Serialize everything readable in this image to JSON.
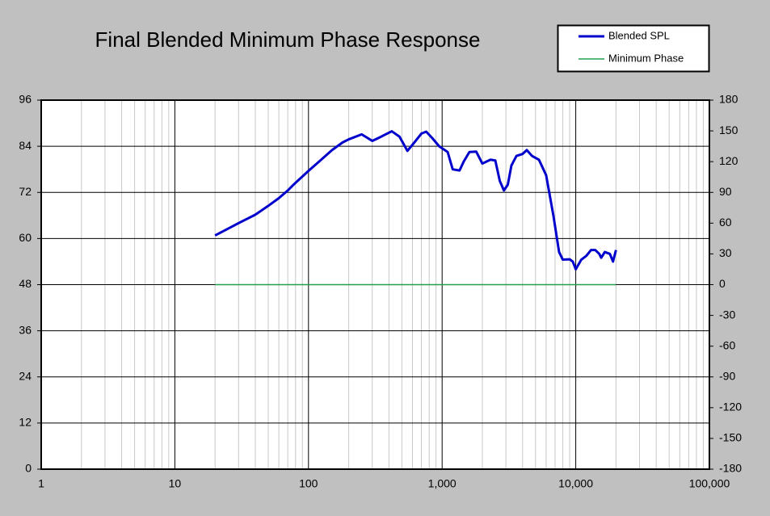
{
  "chart_data": {
    "type": "line",
    "title": "Final Blended Minimum Phase Response",
    "xscale": "log",
    "xlim": [
      1,
      100000
    ],
    "xticks": [
      1,
      10,
      100,
      {
        "value": 1000,
        "label": "1,000"
      },
      {
        "value": 10000,
        "label": "10,000"
      },
      {
        "value": 100000,
        "label": "100,000"
      }
    ],
    "x_minor_grid": true,
    "ylim": [
      0,
      96
    ],
    "yticks": [
      0,
      12,
      24,
      36,
      48,
      60,
      72,
      84,
      96
    ],
    "y2lim": [
      -180,
      180
    ],
    "y2ticks": [
      -180,
      -150,
      -120,
      -90,
      -60,
      -30,
      0,
      30,
      60,
      90,
      120,
      150,
      180
    ],
    "grid": true,
    "legend": "top-right",
    "series": [
      {
        "name": "Blended SPL",
        "color": "#0000cc",
        "x": [
          20,
          30,
          40,
          50,
          60,
          70,
          80,
          100,
          120,
          150,
          180,
          200,
          250,
          300,
          350,
          420,
          480,
          550,
          620,
          700,
          760,
          850,
          950,
          1100,
          1200,
          1350,
          1450,
          1600,
          1800,
          2000,
          2300,
          2500,
          2700,
          2900,
          3100,
          3300,
          3600,
          4000,
          4300,
          4700,
          5300,
          6000,
          6800,
          7500,
          8000,
          9000,
          9500,
          10000,
          11000,
          12000,
          13000,
          14000,
          15000,
          15500,
          16500,
          18000,
          19000,
          20000
        ],
        "values": [
          60.8,
          64,
          66.2,
          68.5,
          70.5,
          72.5,
          74.5,
          77.6,
          80,
          83,
          85,
          85.8,
          87.1,
          85.4,
          86.5,
          87.9,
          86.5,
          82.8,
          85,
          87.3,
          87.8,
          86,
          84,
          82.5,
          78,
          77.7,
          80,
          82.5,
          82.6,
          79.5,
          80.5,
          80.3,
          75,
          72.5,
          74,
          79,
          81.5,
          82,
          83,
          81.5,
          80.5,
          76.5,
          66,
          56.5,
          54.5,
          54.6,
          54,
          52,
          54.5,
          55.5,
          57,
          57,
          56,
          55,
          56.5,
          56,
          54,
          57
        ]
      },
      {
        "name": "Minimum Phase",
        "color": "#22a050",
        "axis": "y2",
        "x": [
          20,
          20000
        ],
        "values": [
          0,
          0
        ]
      }
    ]
  }
}
